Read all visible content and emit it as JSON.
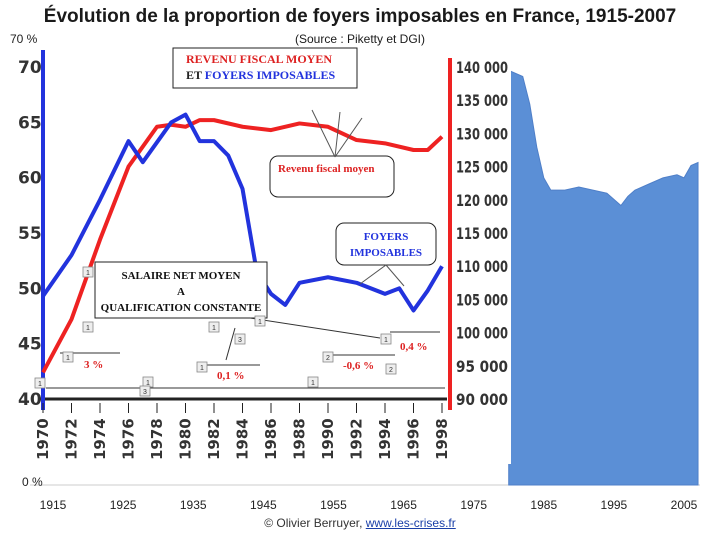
{
  "title": "Évolution de la proportion de foyers imposables en France, 1915-2007",
  "subtitle": "(Source : Piketty et DGI)",
  "credit": {
    "prefix": "© Olivier Berruyer, ",
    "link": "www.les-crises.fr"
  },
  "colors": {
    "area": "#5b8fd6",
    "foyers": "#2233dd",
    "revenu": "#ee2222",
    "background": "#ffffff"
  },
  "chart_data": [
    {
      "type": "area",
      "x_ticks": [
        1915,
        1925,
        1935,
        1945,
        1955,
        1965,
        1975,
        1985,
        1995,
        2005
      ],
      "y_ticks_shown": [
        "0 %",
        "70 %"
      ],
      "xlim": [
        1915,
        2007
      ],
      "ylim": [
        0,
        70
      ],
      "series": [
        {
          "name": "",
          "x": [
            1980,
            1982,
            1983,
            1984,
            1985,
            1986,
            1988,
            1990,
            1992,
            1994,
            1996,
            1997,
            1998,
            2000,
            2002,
            2004,
            2005,
            2006,
            2007
          ],
          "y": [
            67.5,
            66.5,
            62,
            55,
            50,
            48,
            48,
            48.5,
            48,
            47.5,
            45.5,
            47,
            48,
            49,
            50,
            50.5,
            50,
            52,
            52.5
          ]
        }
      ]
    },
    {
      "type": "line",
      "x_ticks": [
        1970,
        1972,
        1974,
        1976,
        1978,
        1980,
        1982,
        1984,
        1986,
        1988,
        1990,
        1992,
        1994,
        1996,
        1998
      ],
      "left_y_ticks": [
        40,
        45,
        50,
        55,
        60,
        65,
        70
      ],
      "right_y_ticks": [
        "90 000",
        "95 000",
        "100 000",
        "105 000",
        "110 000",
        "115 000",
        "120 000",
        "125 000",
        "130 000",
        "135 000",
        "140 000"
      ],
      "left_ylim": [
        40,
        70
      ],
      "right_ylim": [
        90000,
        140000
      ],
      "series": [
        {
          "name": "FOYERS IMPOSABLES",
          "x": [
            1970,
            1972,
            1974,
            1976,
            1977,
            1979,
            1980,
            1981,
            1982,
            1983,
            1984,
            1985,
            1986,
            1987,
            1988,
            1990,
            1992,
            1994,
            1995,
            1996,
            1997,
            1998
          ],
          "y": [
            49.3,
            53,
            58,
            63.3,
            61.4,
            65,
            65.7,
            63.3,
            63.3,
            62,
            59,
            51.5,
            49.5,
            48.5,
            50.5,
            51,
            50.5,
            49.5,
            50,
            48,
            49.8,
            52
          ]
        },
        {
          "name": "Revenu fiscal moyen",
          "x": [
            1970,
            1972,
            1974,
            1976,
            1978,
            1979,
            1980,
            1981,
            1982,
            1984,
            1986,
            1988,
            1990,
            1992,
            1994,
            1996,
            1997,
            1998
          ],
          "y": [
            94,
            102,
            114,
            125,
            131,
            131.3,
            131,
            132,
            132,
            131,
            130.5,
            131.5,
            131,
            129,
            128.5,
            127.5,
            127.5,
            129.5
          ]
        }
      ]
    }
  ],
  "annotations": {
    "box_title_line1": "REVENU FISCAL MOYEN",
    "box_title_line2_prefix": "ET ",
    "box_title_line2_blue": "FOYERS IMPOSABLES",
    "revenu_label": "Revenu fiscal moyen",
    "foyers_label_line1": "FOYERS",
    "foyers_label_line2": "IMPOSABLES",
    "salaire_line1": "SALAIRE NET MOYEN",
    "salaire_line2": "A",
    "salaire_line3": "QUALIFICATION CONSTANTE",
    "pct_3": "3 %",
    "pct_01": "0,1 %",
    "pct_04": "0,4 %",
    "pct_06": "-0,6 %",
    "markers": [
      "1",
      "1",
      "1",
      "1",
      "1",
      "1",
      "1",
      "1",
      "1",
      "1",
      "2",
      "2",
      "3",
      "3"
    ]
  }
}
